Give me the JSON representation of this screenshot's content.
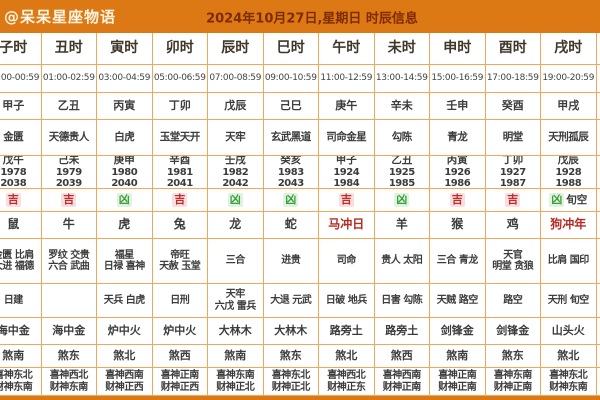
{
  "header": {
    "brand": "@呆呆星座物语",
    "title": "2024年10月27日,星期日 时辰信息"
  },
  "palette": {
    "header_orange": "#dd7914",
    "grid_orange": "#efa75c",
    "title_dark_red": "#7d2b03",
    "good_red": "#c02b2b",
    "bad_green": "#3c9e3c",
    "warn_red": "#b52a21"
  },
  "table": {
    "has_stub_column": true,
    "columns": [
      {
        "name": "子时",
        "time": "23:00-00:59",
        "ganzhi": "甲子",
        "officer": "金匮",
        "pillar": "戊午",
        "years": "1978 2038",
        "luck": "吉",
        "luck_extra": "",
        "zodiac": "鼠",
        "zodiac_red": false,
        "auspicious": [
          "金匮 比肩",
          "大进 福德"
        ],
        "inauspicious": [
          "日建"
        ],
        "nayin": "海中金",
        "sha": "煞南",
        "xishen": "喜神东北",
        "caishen": "财神东南"
      },
      {
        "name": "丑时",
        "time": "01:00-02:59",
        "ganzhi": "乙丑",
        "officer": "天德贵人",
        "pillar": "己未",
        "years": "1979 2039",
        "luck": "吉",
        "luck_extra": "",
        "zodiac": "牛",
        "zodiac_red": false,
        "auspicious": [
          "罗纹 交贵",
          "六合 武曲"
        ],
        "inauspicious": [],
        "nayin": "海中金",
        "sha": "煞东",
        "xishen": "喜神西北",
        "caishen": "财神东南"
      },
      {
        "name": "寅时",
        "time": "03:00-04:59",
        "ganzhi": "丙寅",
        "officer": "白虎",
        "pillar": "庚申",
        "years": "1980 2040",
        "luck": "凶",
        "luck_extra": "",
        "zodiac": "虎",
        "zodiac_red": false,
        "auspicious": [
          "福星",
          "日禄 喜神"
        ],
        "inauspicious": [
          "天兵 白虎"
        ],
        "nayin": "炉中火",
        "sha": "煞北",
        "xishen": "喜神西南",
        "caishen": "财神正西"
      },
      {
        "name": "卯时",
        "time": "05:00-06:59",
        "ganzhi": "丁卯",
        "officer": "玉堂天开",
        "pillar": "辛酉",
        "years": "1981 2041",
        "luck": "吉",
        "luck_extra": "",
        "zodiac": "兔",
        "zodiac_red": false,
        "auspicious": [
          "帝旺",
          "天赦 玉堂"
        ],
        "inauspicious": [
          "日刑"
        ],
        "nayin": "炉中火",
        "sha": "煞西",
        "xishen": "喜神正南",
        "caishen": "财神正西"
      },
      {
        "name": "辰时",
        "time": "07:00-08:59",
        "ganzhi": "戊辰",
        "officer": "天牢",
        "pillar": "壬戌",
        "years": "1982 2042",
        "luck": "凶",
        "luck_extra": "",
        "zodiac": "龙",
        "zodiac_red": false,
        "auspicious": [
          "三合"
        ],
        "inauspicious": [
          "天牢",
          "六戊 雷兵"
        ],
        "nayin": "大林木",
        "sha": "煞南",
        "xishen": "喜神东南",
        "caishen": "财神正北"
      },
      {
        "name": "巳时",
        "time": "09:00-10:59",
        "ganzhi": "己巳",
        "officer": "玄武黑道",
        "pillar": "癸亥",
        "years": "1983 2043",
        "luck": "凶",
        "luck_extra": "",
        "zodiac": "蛇",
        "zodiac_red": false,
        "auspicious": [
          "进贵"
        ],
        "inauspicious": [
          "大退 元武"
        ],
        "nayin": "大林木",
        "sha": "煞东",
        "xishen": "喜神东北",
        "caishen": "财神正北"
      },
      {
        "name": "午时",
        "time": "11:00-12:59",
        "ganzhi": "庚午",
        "officer": "司命金星",
        "pillar": "甲子",
        "years": "1924 1984",
        "luck": "吉",
        "luck_extra": "",
        "zodiac": "马冲日",
        "zodiac_red": true,
        "auspicious": [
          "司命"
        ],
        "inauspicious": [
          "日破 地兵"
        ],
        "nayin": "路旁土",
        "sha": "煞北",
        "xishen": "喜神西北",
        "caishen": "财神正东"
      },
      {
        "name": "未时",
        "time": "13:00-14:59",
        "ganzhi": "辛未",
        "officer": "勾陈",
        "pillar": "乙丑",
        "years": "1925 1985",
        "luck": "凶",
        "luck_extra": "",
        "zodiac": "羊",
        "zodiac_red": false,
        "auspicious": [
          "贵人 太阳"
        ],
        "inauspicious": [
          "日害 勾陈"
        ],
        "nayin": "路旁土",
        "sha": "煞西",
        "xishen": "喜神西南",
        "caishen": "财神正南"
      },
      {
        "name": "申时",
        "time": "15:00-16:59",
        "ganzhi": "壬申",
        "officer": "青龙",
        "pillar": "丙寅",
        "years": "1926 1986",
        "luck": "吉",
        "luck_extra": "",
        "zodiac": "猴",
        "zodiac_red": false,
        "auspicious": [
          "三合 青龙"
        ],
        "inauspicious": [
          "天贼 路空"
        ],
        "nayin": "剑锋金",
        "sha": "煞南",
        "xishen": "喜神正南",
        "caishen": "财神正南"
      },
      {
        "name": "酉时",
        "time": "17:00-18:59",
        "ganzhi": "癸酉",
        "officer": "明堂",
        "pillar": "丁卯",
        "years": "1927 1987",
        "luck": "吉",
        "luck_extra": "",
        "zodiac": "鸡",
        "zodiac_red": false,
        "auspicious": [
          "天官",
          "明堂 贪狼"
        ],
        "inauspicious": [
          "路空"
        ],
        "nayin": "剑锋金",
        "sha": "煞东",
        "xishen": "喜神东南",
        "caishen": "财神正南"
      },
      {
        "name": "戌时",
        "time": "19:00-20:59",
        "ganzhi": "甲戌",
        "officer": "天刑孤辰",
        "pillar": "戊辰",
        "years": "1928 1988",
        "luck": "凶",
        "luck_extra": "旬空",
        "zodiac": "狗冲年",
        "zodiac_red": true,
        "auspicious": [
          "比肩 国印"
        ],
        "inauspicious": [
          "天刑 旬空"
        ],
        "nayin": "山头火",
        "sha": "煞北",
        "xishen": "喜神东北",
        "caishen": "财神东南"
      }
    ]
  }
}
